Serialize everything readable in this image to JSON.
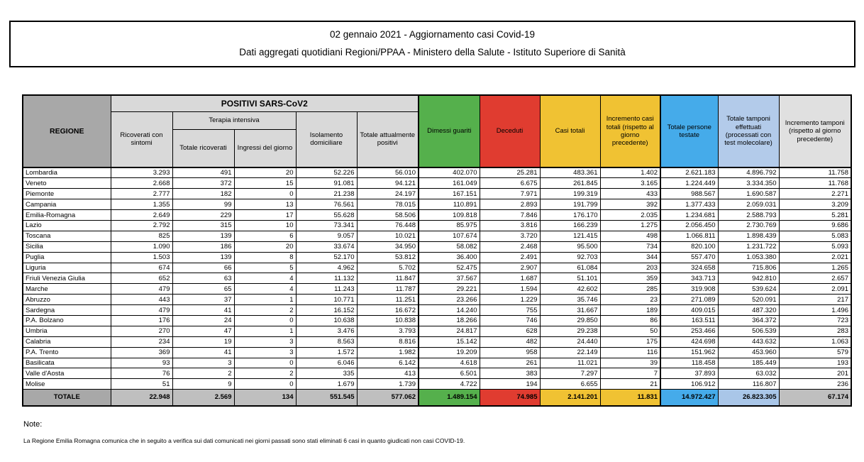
{
  "title": {
    "line1": "02 gennaio 2021 - Aggiornamento casi Covid-19",
    "line2": "Dati aggregati quotidiani Regioni/PPAA - Ministero della Salute - Istituto Superiore di Sanità"
  },
  "colors": {
    "green": "#55b04c",
    "red": "#e03c30",
    "yellow": "#f0c233",
    "blue": "#45abea",
    "light_blue": "#b3cbea",
    "header_gray": "#d9d9d9",
    "dark_gray": "#a8a8a8",
    "totals_gray": "#bfbfbf",
    "light_gray_header": "#e0e0e0"
  },
  "table": {
    "headers": {
      "regione": "REGIONE",
      "positivi_group": "POSITIVI SARS-CoV2",
      "ricoverati_con_sintomi": "Ricoverati con sintomi",
      "terapia_intensiva_group": "Terapia intensiva",
      "totale_ricoverati": "Totale ricoverati",
      "ingressi_del_giorno": "Ingressi del giorno",
      "isolamento_domiciliare": "Isolamento domiciliare",
      "totale_attualmente_positivi": "Totale attualmente positivi",
      "dimessi_guariti": "Dimessi guariti",
      "deceduti": "Deceduti",
      "casi_totali": "Casi totali",
      "incremento_casi_totali": "Incremento casi totali (rispetto al giorno precedente)",
      "totale_persone_testate": "Totale persone testate",
      "totale_tamponi": "Totale tamponi effettuati (processati con test molecolare)",
      "incremento_tamponi": "Incremento tamponi (rispetto al giorno precedente)"
    },
    "rows": [
      {
        "regione": "Lombardia",
        "values": [
          "3.293",
          "491",
          "20",
          "52.226",
          "56.010",
          "402.070",
          "25.281",
          "483.361",
          "1.402",
          "2.621.183",
          "4.896.792",
          "11.758"
        ]
      },
      {
        "regione": "Veneto",
        "values": [
          "2.668",
          "372",
          "15",
          "91.081",
          "94.121",
          "161.049",
          "6.675",
          "261.845",
          "3.165",
          "1.224.449",
          "3.334.350",
          "11.768"
        ]
      },
      {
        "regione": "Piemonte",
        "values": [
          "2.777",
          "182",
          "0",
          "21.238",
          "24.197",
          "167.151",
          "7.971",
          "199.319",
          "433",
          "988.567",
          "1.690.587",
          "2.271"
        ]
      },
      {
        "regione": "Campania",
        "values": [
          "1.355",
          "99",
          "13",
          "76.561",
          "78.015",
          "110.891",
          "2.893",
          "191.799",
          "392",
          "1.377.433",
          "2.059.031",
          "3.209"
        ]
      },
      {
        "regione": "Emilia-Romagna",
        "values": [
          "2.649",
          "229",
          "17",
          "55.628",
          "58.506",
          "109.818",
          "7.846",
          "176.170",
          "2.035",
          "1.234.681",
          "2.588.793",
          "5.281"
        ]
      },
      {
        "regione": "Lazio",
        "values": [
          "2.792",
          "315",
          "10",
          "73.341",
          "76.448",
          "85.975",
          "3.816",
          "166.239",
          "1.275",
          "2.056.450",
          "2.730.769",
          "9.686"
        ]
      },
      {
        "regione": "Toscana",
        "values": [
          "825",
          "139",
          "6",
          "9.057",
          "10.021",
          "107.674",
          "3.720",
          "121.415",
          "498",
          "1.066.811",
          "1.898.439",
          "5.083"
        ]
      },
      {
        "regione": "Sicilia",
        "values": [
          "1.090",
          "186",
          "20",
          "33.674",
          "34.950",
          "58.082",
          "2.468",
          "95.500",
          "734",
          "820.100",
          "1.231.722",
          "5.093"
        ]
      },
      {
        "regione": "Puglia",
        "values": [
          "1.503",
          "139",
          "8",
          "52.170",
          "53.812",
          "36.400",
          "2.491",
          "92.703",
          "344",
          "557.470",
          "1.053.380",
          "2.021"
        ]
      },
      {
        "regione": "Liguria",
        "values": [
          "674",
          "66",
          "5",
          "4.962",
          "5.702",
          "52.475",
          "2.907",
          "61.084",
          "203",
          "324.658",
          "715.806",
          "1.265"
        ]
      },
      {
        "regione": "Friuli Venezia Giulia",
        "values": [
          "652",
          "63",
          "4",
          "11.132",
          "11.847",
          "37.567",
          "1.687",
          "51.101",
          "359",
          "343.713",
          "942.810",
          "2.657"
        ]
      },
      {
        "regione": "Marche",
        "values": [
          "479",
          "65",
          "4",
          "11.243",
          "11.787",
          "29.221",
          "1.594",
          "42.602",
          "285",
          "319.908",
          "539.624",
          "2.091"
        ]
      },
      {
        "regione": "Abruzzo",
        "values": [
          "443",
          "37",
          "1",
          "10.771",
          "11.251",
          "23.266",
          "1.229",
          "35.746",
          "23",
          "271.089",
          "520.091",
          "217"
        ]
      },
      {
        "regione": "Sardegna",
        "values": [
          "479",
          "41",
          "2",
          "16.152",
          "16.672",
          "14.240",
          "755",
          "31.667",
          "189",
          "409.015",
          "487.320",
          "1.496"
        ]
      },
      {
        "regione": "P.A. Bolzano",
        "values": [
          "176",
          "24",
          "0",
          "10.638",
          "10.838",
          "18.266",
          "746",
          "29.850",
          "86",
          "163.511",
          "364.372",
          "723"
        ]
      },
      {
        "regione": "Umbria",
        "values": [
          "270",
          "47",
          "1",
          "3.476",
          "3.793",
          "24.817",
          "628",
          "29.238",
          "50",
          "253.466",
          "506.539",
          "283"
        ]
      },
      {
        "regione": "Calabria",
        "values": [
          "234",
          "19",
          "3",
          "8.563",
          "8.816",
          "15.142",
          "482",
          "24.440",
          "175",
          "424.698",
          "443.632",
          "1.063"
        ]
      },
      {
        "regione": "P.A. Trento",
        "values": [
          "369",
          "41",
          "3",
          "1.572",
          "1.982",
          "19.209",
          "958",
          "22.149",
          "116",
          "151.962",
          "453.960",
          "579"
        ]
      },
      {
        "regione": "Basilicata",
        "values": [
          "93",
          "3",
          "0",
          "6.046",
          "6.142",
          "4.618",
          "261",
          "11.021",
          "39",
          "118.458",
          "185.449",
          "193"
        ]
      },
      {
        "regione": "Valle d'Aosta",
        "values": [
          "76",
          "2",
          "2",
          "335",
          "413",
          "6.501",
          "383",
          "7.297",
          "7",
          "37.893",
          "63.032",
          "201"
        ]
      },
      {
        "regione": "Molise",
        "values": [
          "51",
          "9",
          "0",
          "1.679",
          "1.739",
          "4.722",
          "194",
          "6.655",
          "21",
          "106.912",
          "116.807",
          "236"
        ]
      }
    ],
    "totals": {
      "label": "TOTALE",
      "values": [
        "22.948",
        "2.569",
        "134",
        "551.545",
        "577.062",
        "1.489.154",
        "74.985",
        "2.141.201",
        "11.831",
        "14.972.427",
        "26.823.305",
        "67.174"
      ]
    }
  },
  "notes": {
    "heading": "Note:",
    "text": "La Regione Emilia Romagna comunica che in seguito a verifica sui dati comunicati nei giorni passati sono stati eliminati 6 casi in quanto giudicati non casi COVID-19."
  }
}
